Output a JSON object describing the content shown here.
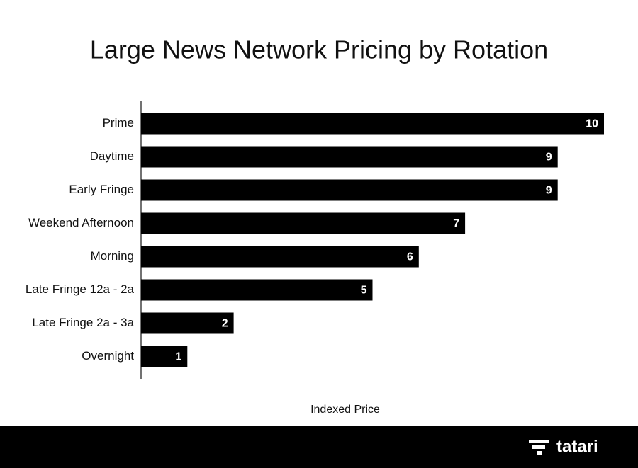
{
  "chart_data": {
    "type": "bar",
    "orientation": "horizontal",
    "title": "Large News Network Pricing by Rotation",
    "categories": [
      "Prime",
      "Daytime",
      "Early Fringe",
      "Weekend Afternoon",
      "Morning",
      "Late Fringe 12a - 2a",
      "Late Fringe 2a - 3a",
      "Overnight"
    ],
    "values": [
      10,
      9,
      9,
      7,
      6,
      5,
      2,
      1
    ],
    "color": "#000000",
    "x_label": "Indexed Price"
  },
  "footer": {
    "brand": "tatari"
  }
}
